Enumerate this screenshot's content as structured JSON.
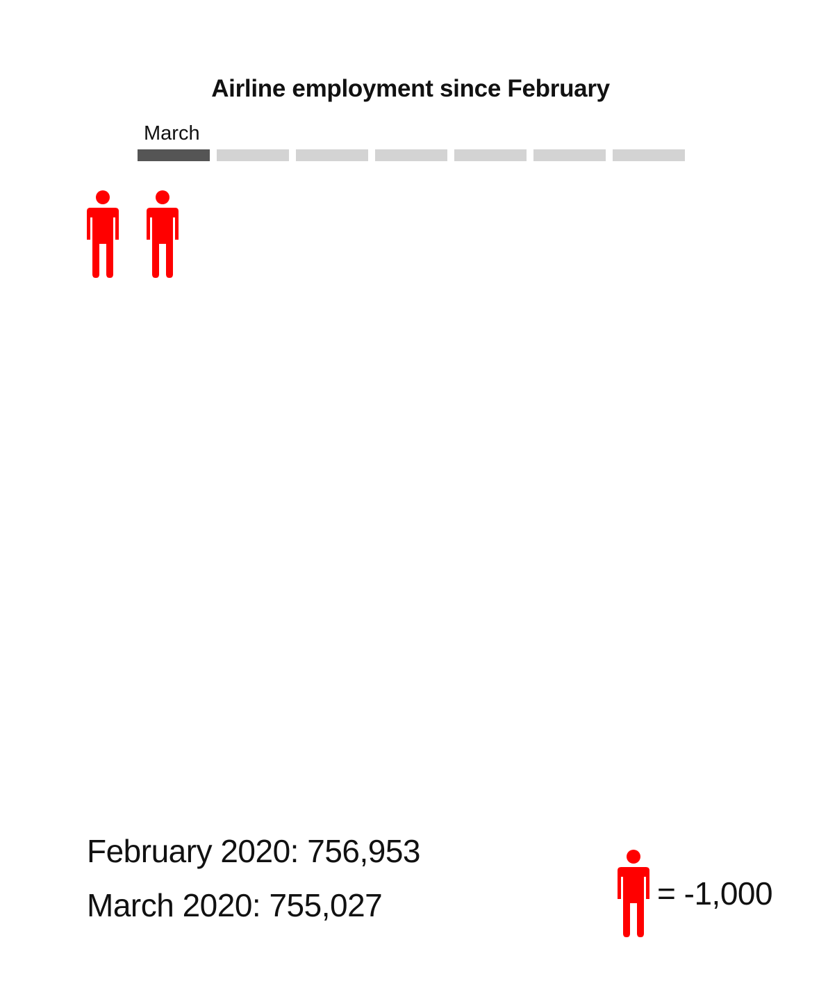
{
  "chart_data": {
    "type": "pictogram",
    "title": "Airline employment since February",
    "timeline": {
      "steps": 7,
      "active_index": 0,
      "active_label": "March"
    },
    "icon": "person-icon",
    "icon_color": "#ff0000",
    "unit_value": -1000,
    "icons_shown": 2,
    "stats": [
      {
        "label": "February 2020: 756,953",
        "period": "February 2020",
        "value": 756953
      },
      {
        "label": "March 2020: 755,027",
        "period": "March 2020",
        "value": 755027
      }
    ],
    "legend": {
      "text": "= -1,000"
    }
  }
}
